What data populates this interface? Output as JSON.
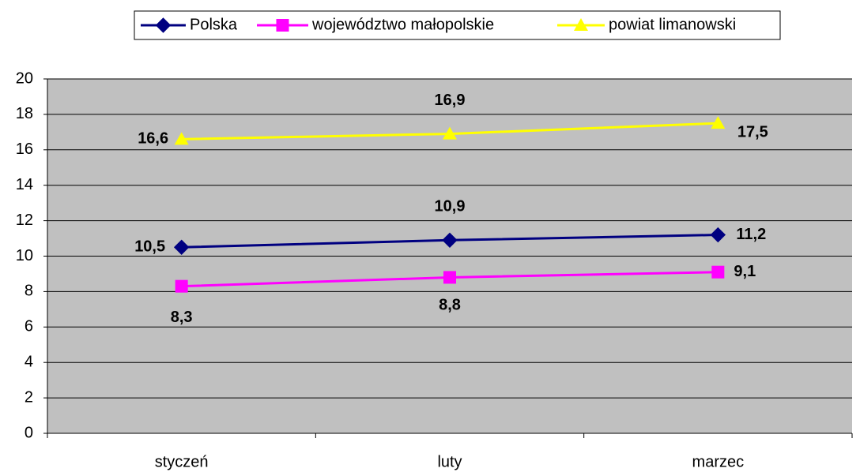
{
  "chart_data": {
    "type": "line",
    "categories": [
      "styczeń",
      "luty",
      "marzec"
    ],
    "series": [
      {
        "name": "Polska",
        "color": "#000080",
        "marker": "diamond",
        "values": [
          10.5,
          10.9,
          11.2
        ],
        "value_labels": [
          "10,5",
          "10,9",
          "11,2"
        ]
      },
      {
        "name": "województwo małopolskie",
        "color": "#ff00ff",
        "marker": "square",
        "values": [
          8.3,
          8.8,
          9.1
        ],
        "value_labels": [
          "8,3",
          "8,8",
          "9,1"
        ]
      },
      {
        "name": "powiat limanowski",
        "color": "#ffff00",
        "marker": "triangle",
        "values": [
          16.6,
          16.9,
          17.5
        ],
        "value_labels": [
          "16,6",
          "16,9",
          "17,5"
        ]
      }
    ],
    "ylim": [
      0,
      20
    ],
    "yticks": [
      0,
      2,
      4,
      6,
      8,
      10,
      12,
      14,
      16,
      18,
      20
    ],
    "grid": true,
    "legend": "top"
  }
}
